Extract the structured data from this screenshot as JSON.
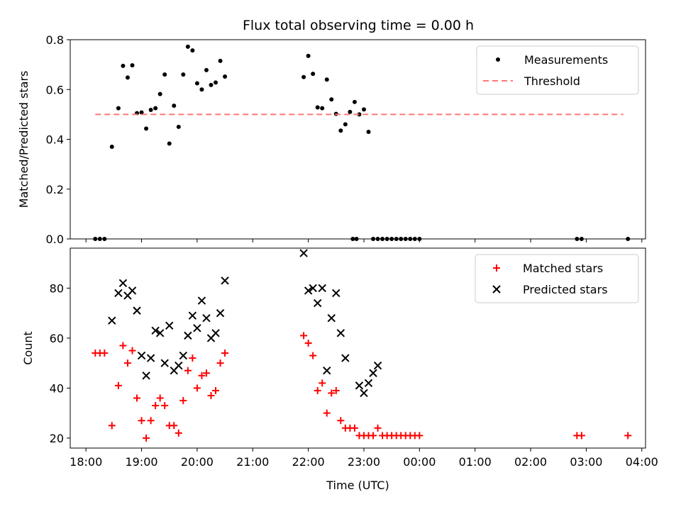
{
  "chart_data": [
    {
      "type": "scatter",
      "title": "Flux total observing time = 0.00 h",
      "xlabel": "",
      "ylabel": "Matched/Predicted stars",
      "xlim": [
        "18:00",
        "04:00"
      ],
      "ylim": [
        0,
        0.8
      ],
      "yticks": [
        "0.0",
        "0.2",
        "0.4",
        "0.6",
        "0.8"
      ],
      "grid": false,
      "legend_position": "top-right",
      "series": [
        {
          "name": "Measurements",
          "color": "#000000",
          "marker": "dot",
          "x": [
            "18:10",
            "18:15",
            "18:20",
            "18:28",
            "18:35",
            "18:40",
            "18:45",
            "18:50",
            "18:55",
            "19:00",
            "19:05",
            "19:10",
            "19:15",
            "19:20",
            "19:25",
            "19:30",
            "19:35",
            "19:40",
            "19:45",
            "19:50",
            "19:55",
            "20:00",
            "20:05",
            "20:10",
            "20:15",
            "20:20",
            "20:25",
            "20:30",
            "21:55",
            "22:00",
            "22:05",
            "22:10",
            "22:15",
            "22:20",
            "22:25",
            "22:30",
            "22:35",
            "22:40",
            "22:45",
            "22:50",
            "22:55",
            "23:00",
            "23:05",
            "23:10",
            "23:15",
            "22:48",
            "22:52",
            "23:20",
            "23:25",
            "23:30",
            "23:35",
            "23:40",
            "23:45",
            "23:50",
            "23:55",
            "00:00",
            "02:50",
            "02:55",
            "03:45"
          ],
          "y": [
            0.0,
            0.0,
            0.0,
            0.37,
            0.525,
            0.695,
            0.648,
            0.697,
            0.505,
            0.508,
            0.443,
            0.518,
            0.525,
            0.582,
            0.66,
            0.383,
            0.535,
            0.45,
            0.66,
            0.772,
            0.757,
            0.625,
            0.6,
            0.678,
            0.618,
            0.628,
            0.715,
            0.652,
            0.65,
            0.735,
            0.663,
            0.528,
            0.525,
            0.64,
            0.56,
            0.502,
            0.435,
            0.46,
            0.51,
            0.55,
            0.5,
            0.52,
            0.43,
            0.0,
            0.0,
            0.0,
            0.0,
            0.0,
            0.0,
            0.0,
            0.0,
            0.0,
            0.0,
            0.0,
            0.0,
            0.0,
            0.0,
            0.0,
            0.0
          ]
        },
        {
          "name": "Threshold",
          "color": "#ff7777",
          "line": "dashed",
          "x": [
            "18:10",
            "03:40"
          ],
          "y": [
            0.5,
            0.5
          ]
        }
      ]
    },
    {
      "type": "scatter",
      "title": "",
      "xlabel": "Time (UTC)",
      "ylabel": "Count",
      "xlim": [
        "18:00",
        "04:00"
      ],
      "ylim": [
        16,
        96
      ],
      "yticks": [
        "20",
        "40",
        "60",
        "80"
      ],
      "xticks": [
        "18:00",
        "19:00",
        "20:00",
        "21:00",
        "22:00",
        "23:00",
        "00:00",
        "01:00",
        "02:00",
        "03:00",
        "04:00"
      ],
      "grid": false,
      "legend_position": "top-right",
      "series": [
        {
          "name": "Matched stars",
          "color": "#ff0000",
          "marker": "plus",
          "x": [
            "18:10",
            "18:15",
            "18:20",
            "18:28",
            "18:35",
            "18:40",
            "18:45",
            "18:50",
            "18:55",
            "19:00",
            "19:05",
            "19:10",
            "19:15",
            "19:20",
            "19:25",
            "19:30",
            "19:35",
            "19:40",
            "19:45",
            "19:50",
            "19:55",
            "20:00",
            "20:05",
            "20:10",
            "20:15",
            "20:20",
            "20:25",
            "20:30",
            "21:55",
            "22:00",
            "22:05",
            "22:10",
            "22:15",
            "22:20",
            "22:25",
            "22:30",
            "22:35",
            "22:40",
            "22:45",
            "22:50",
            "22:55",
            "23:00",
            "23:05",
            "23:10",
            "23:15",
            "23:20",
            "23:25",
            "23:30",
            "23:35",
            "23:40",
            "23:45",
            "23:50",
            "23:55",
            "00:00",
            "02:50",
            "02:55",
            "03:45"
          ],
          "y": [
            54,
            54,
            54,
            25,
            41,
            57,
            50,
            55,
            36,
            27,
            20,
            27,
            33,
            36,
            33,
            25,
            25,
            22,
            35,
            47,
            52,
            40,
            45,
            46,
            37,
            39,
            50,
            54,
            61,
            58,
            53,
            39,
            42,
            30,
            38,
            39,
            27,
            24,
            24,
            24,
            21,
            21,
            21,
            21,
            24,
            21,
            21,
            21,
            21,
            21,
            21,
            21,
            21,
            21,
            21,
            21,
            21
          ]
        },
        {
          "name": "Predicted stars",
          "color": "#000000",
          "marker": "x",
          "x": [
            "18:28",
            "18:35",
            "18:40",
            "18:45",
            "18:50",
            "18:55",
            "19:00",
            "19:05",
            "19:10",
            "19:15",
            "19:20",
            "19:25",
            "19:30",
            "19:35",
            "19:40",
            "19:45",
            "19:50",
            "19:55",
            "20:00",
            "20:05",
            "20:10",
            "20:15",
            "20:20",
            "20:25",
            "20:30",
            "21:55",
            "22:00",
            "22:05",
            "22:10",
            "22:15",
            "22:20",
            "22:25",
            "22:30",
            "22:35",
            "22:40",
            "22:55",
            "23:00",
            "23:05",
            "23:10",
            "23:15"
          ],
          "y": [
            67,
            78,
            82,
            77,
            79,
            71,
            53,
            45,
            52,
            63,
            62,
            50,
            65,
            47,
            49,
            53,
            61,
            69,
            64,
            75,
            68,
            60,
            62,
            70,
            83,
            94,
            79,
            80,
            74,
            80,
            47,
            68,
            78,
            62,
            52,
            41,
            38,
            42,
            46,
            49
          ]
        }
      ]
    }
  ]
}
